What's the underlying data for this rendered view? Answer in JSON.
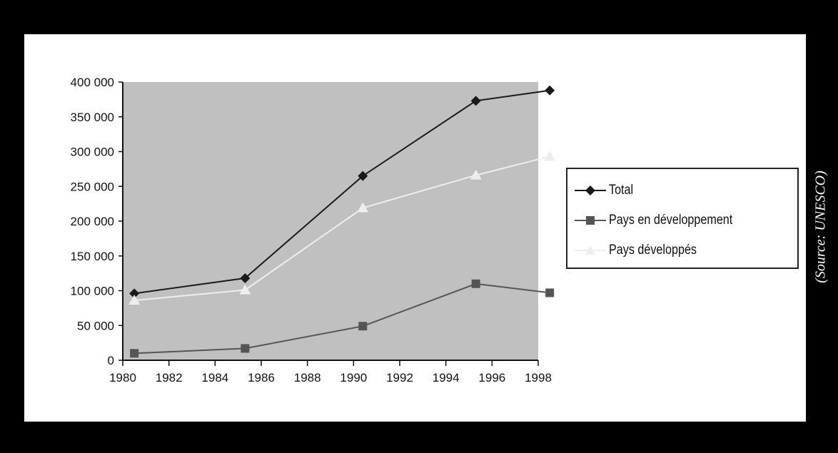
{
  "source_note": "(Source: UNESCO)",
  "chart_data": {
    "type": "line",
    "title": "",
    "xlabel": "",
    "ylabel": "",
    "x_ticks": [
      "1980",
      "1982",
      "1984",
      "1986",
      "1988",
      "1990",
      "1992",
      "1994",
      "1996",
      "1998"
    ],
    "y_ticks": [
      "0",
      "50 000",
      "100 000",
      "150 000",
      "200 000",
      "250 000",
      "300 000",
      "350 000",
      "400 000"
    ],
    "xlim": [
      1980,
      1998
    ],
    "ylim": [
      0,
      400000
    ],
    "grid": false,
    "plot_background": "#c0c0c0",
    "legend_position": "right",
    "series": [
      {
        "name": "Total",
        "color": "#1a1a1a",
        "marker": "diamond",
        "x": [
          1980.5,
          1985.3,
          1990.4,
          1995.3,
          1998.5
        ],
        "y": [
          96000,
          118000,
          265000,
          373000,
          388000
        ]
      },
      {
        "name": "Pays en développement",
        "color": "#555555",
        "marker": "square",
        "x": [
          1980.5,
          1985.3,
          1990.4,
          1995.3,
          1998.5
        ],
        "y": [
          10000,
          17000,
          49000,
          110000,
          97000
        ]
      },
      {
        "name": "Pays développés",
        "color": "#eeeeee",
        "marker": "triangle",
        "x": [
          1980.5,
          1985.3,
          1990.4,
          1995.3,
          1998.5
        ],
        "y": [
          86000,
          101000,
          219000,
          266000,
          293000
        ]
      }
    ]
  }
}
